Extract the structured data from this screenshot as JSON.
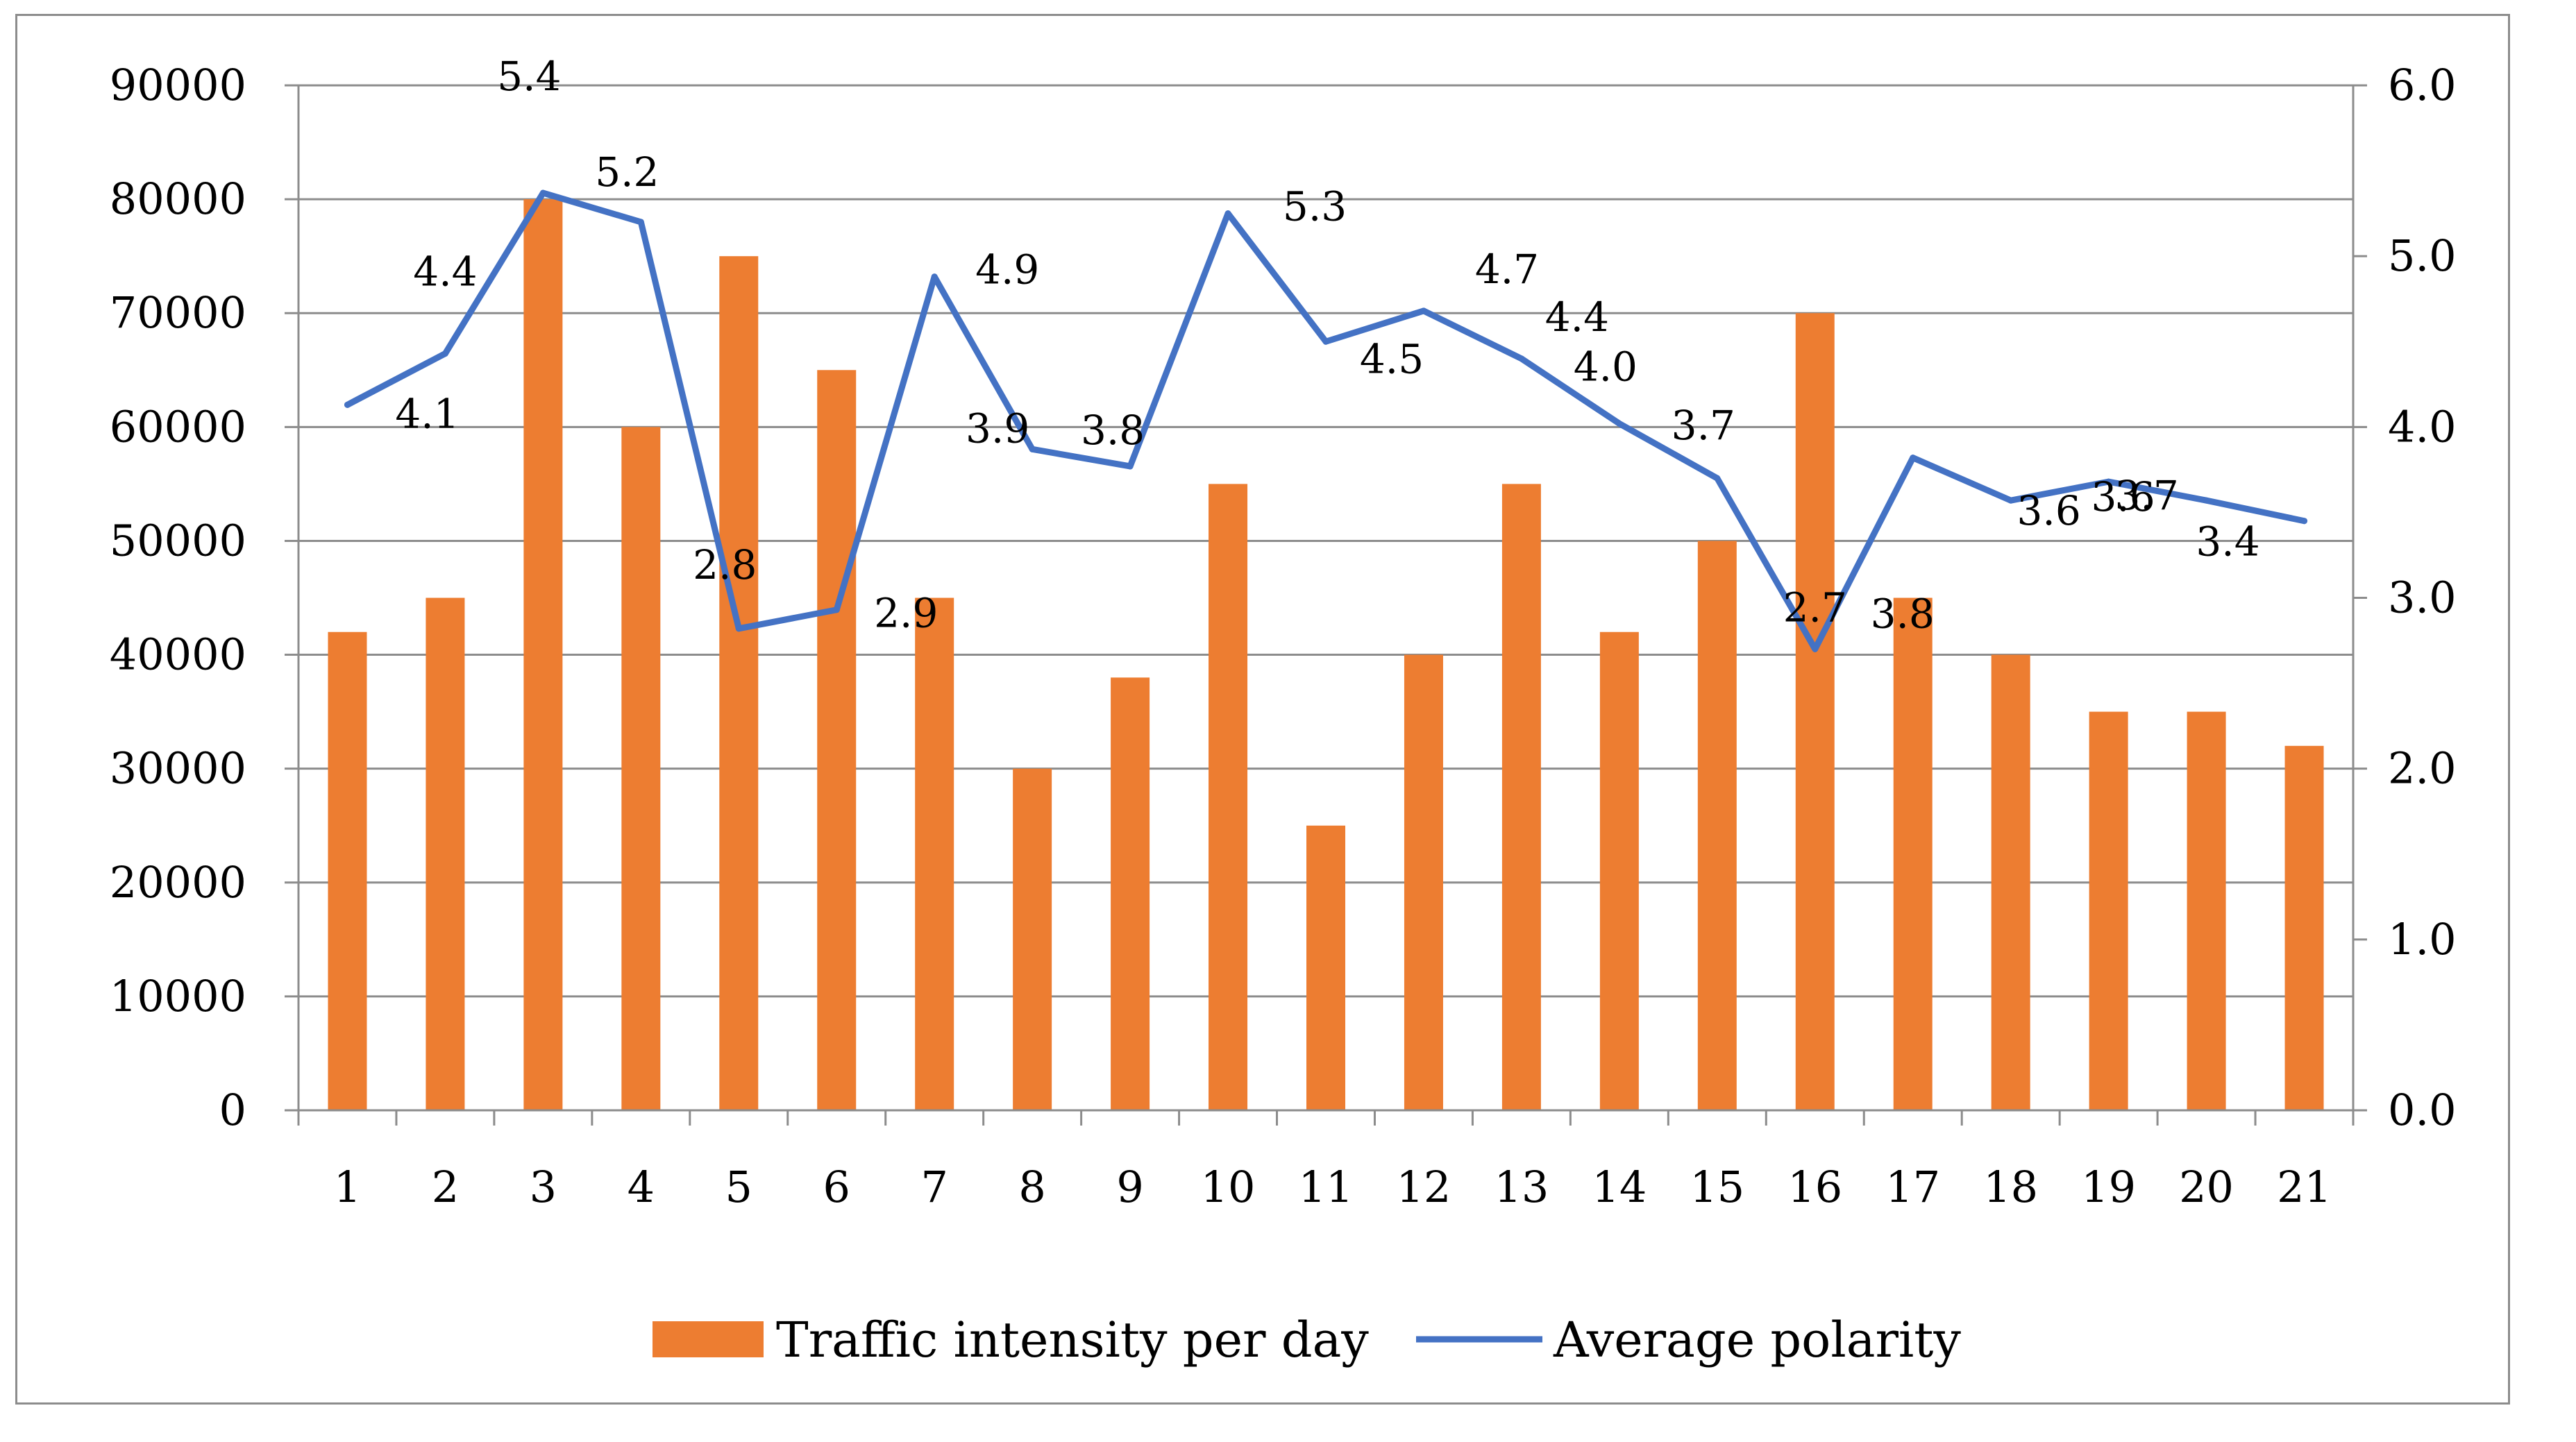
{
  "chart_data": {
    "type": "bar+line",
    "categories": [
      "1",
      "2",
      "3",
      "4",
      "5",
      "6",
      "7",
      "8",
      "9",
      "10",
      "11",
      "12",
      "13",
      "14",
      "15",
      "16",
      "17",
      "18",
      "19",
      "20",
      "21"
    ],
    "series": [
      {
        "name": "Traffic intensity per day",
        "type": "bar",
        "axis": "left",
        "color": "#ED7D31",
        "values": [
          42000,
          45000,
          80000,
          60000,
          75000,
          65000,
          45000,
          30000,
          38000,
          55000,
          25000,
          40000,
          55000,
          42000,
          50000,
          70000,
          45000,
          40000,
          35000,
          35000,
          32000
        ]
      },
      {
        "name": "Average polarity",
        "type": "line",
        "axis": "right",
        "color": "#4472C4",
        "values": [
          4.13,
          4.43,
          5.37,
          5.2,
          2.82,
          2.93,
          4.88,
          3.87,
          3.77,
          5.25,
          4.5,
          4.68,
          4.4,
          4.02,
          3.7,
          2.7,
          3.82,
          3.57,
          3.68,
          3.57,
          3.45
        ],
        "labels": [
          "4.1",
          "4.4",
          "5.4",
          "5.2",
          "2.8",
          "2.9",
          "4.9",
          "3.9",
          "3.8",
          "5.3",
          "4.5",
          "4.7",
          "4.4",
          "4.0",
          "3.7",
          "2.7",
          "3.8",
          "3.6",
          "3.7",
          "3.6",
          "3.4"
        ]
      }
    ],
    "y_left": {
      "min": 0,
      "max": 90000,
      "ticks": [
        "0",
        "10000",
        "20000",
        "30000",
        "40000",
        "50000",
        "60000",
        "70000",
        "80000",
        "90000"
      ]
    },
    "y_right": {
      "min": 0,
      "max": 6,
      "ticks": [
        "0.0",
        "1.0",
        "2.0",
        "3.0",
        "4.0",
        "5.0",
        "6.0"
      ]
    },
    "grid": true,
    "legend": {
      "position": "bottom",
      "entries": [
        "Traffic intensity per day",
        "Average polarity"
      ]
    }
  }
}
